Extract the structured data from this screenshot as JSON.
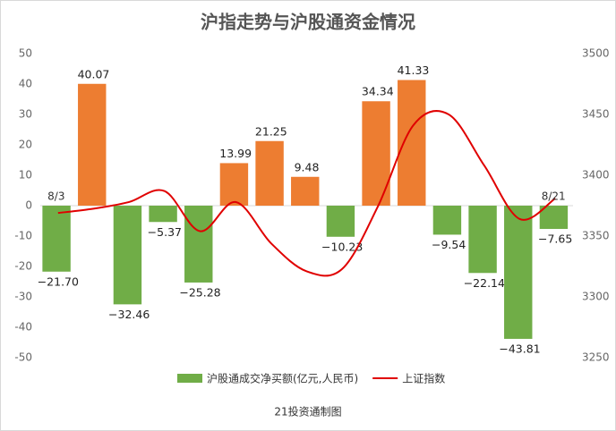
{
  "chart_data": {
    "type": "bar-line",
    "title": "沪指走势与沪股通资金情况",
    "source": "21投资通制图",
    "categories": [
      "8/3",
      null,
      null,
      null,
      null,
      null,
      null,
      null,
      null,
      null,
      null,
      null,
      null,
      null,
      "8/21"
    ],
    "series": [
      {
        "name": "沪股通成交净买额(亿元,人民币)",
        "type": "bar",
        "color": "#70ad47",
        "positive_color": "#ed7d31",
        "values": [
          -21.7,
          40.07,
          -32.46,
          -5.37,
          -25.28,
          13.99,
          21.25,
          9.48,
          -10.23,
          34.34,
          41.33,
          -9.54,
          -22.14,
          -43.81,
          -7.65
        ],
        "value_labels": [
          "−21.70",
          "40.07",
          "−32.46",
          "−5.37",
          "−25.28",
          "13.99",
          "21.25",
          "9.48",
          "−10.23",
          "34.34",
          "41.33",
          "−9.54",
          "−22.14",
          "−43.81",
          "−7.65"
        ]
      },
      {
        "name": "上证指数",
        "type": "line",
        "color": "#e00000",
        "axis": "y2",
        "values": [
          3369,
          3372.5,
          3378,
          3387,
          3354,
          3378,
          3344,
          3321,
          3323,
          3374,
          3441,
          3450,
          3408,
          3364,
          3381
        ]
      }
    ],
    "ylim": [
      -50,
      50
    ],
    "yticks": [
      -50,
      -40,
      -30,
      -20,
      -10,
      0,
      10,
      20,
      30,
      40,
      50
    ],
    "y2lim": [
      3250,
      3500
    ],
    "y2ticks": [
      3250,
      3300,
      3350,
      3400,
      3450,
      3500
    ]
  }
}
